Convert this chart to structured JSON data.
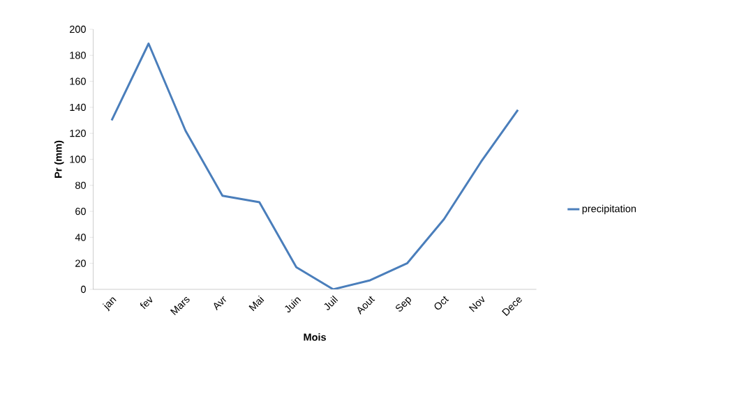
{
  "chart_data": {
    "type": "line",
    "xlabel": "Mois",
    "ylabel": "Pr (mm)",
    "categories": [
      "jan",
      "fev",
      "Mars",
      "Avr",
      "Mai",
      "Juin",
      "Juil",
      "Aout",
      "Sep",
      "Oct",
      "Nov",
      "Dece"
    ],
    "series": [
      {
        "name": "precipitation",
        "color": "#4a7ebb",
        "values": [
          130,
          189,
          122,
          72,
          67,
          17,
          0,
          7,
          20,
          54,
          98,
          138
        ]
      }
    ],
    "ylim": [
      0,
      200
    ],
    "yticks": [
      0,
      20,
      40,
      60,
      80,
      100,
      120,
      140,
      160,
      180,
      200
    ],
    "legend": "right",
    "grid": false,
    "marker": "none",
    "line_style": "solid"
  }
}
